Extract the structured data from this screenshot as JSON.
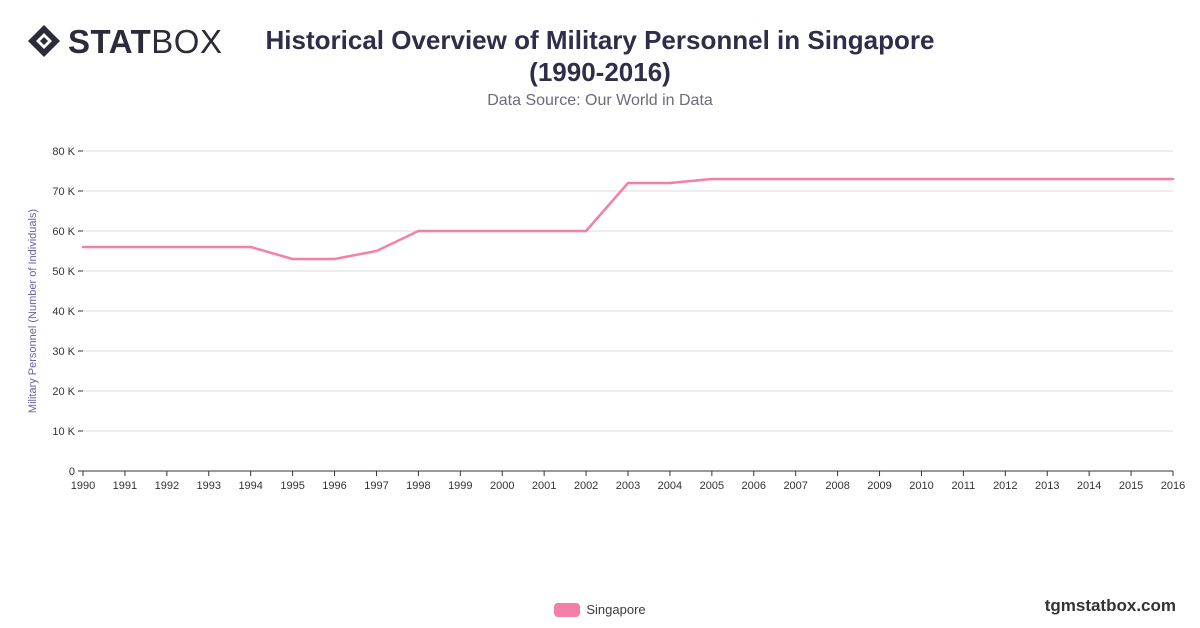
{
  "header": {
    "logo_bold": "STAT",
    "logo_light": "BOX",
    "title_line1": "Historical Overview of Military Personnel in Singapore",
    "title_line2": "(1990-2016)",
    "subtitle": "Data Source: Our World in Data"
  },
  "footer": {
    "brand_url": "tgmstatbox.com"
  },
  "colors": {
    "series": "#f47fa8",
    "grid": "#dcdcdc",
    "axis": "#333333",
    "tick_text": "#333333",
    "ylabel": "#6b5fa0"
  },
  "chart_data": {
    "type": "line",
    "title": "Historical Overview of Military Personnel in Singapore (1990-2016)",
    "subtitle": "Data Source: Our World in Data",
    "xlabel": "",
    "ylabel": "Military Personnel (Number of Individuals)",
    "ylim": [
      0,
      80000
    ],
    "y_ticks": [
      0,
      10000,
      20000,
      30000,
      40000,
      50000,
      60000,
      70000,
      80000
    ],
    "y_tick_labels": [
      "0",
      "10 K",
      "20 K",
      "30 K",
      "40 K",
      "50 K",
      "60 K",
      "70 K",
      "80 K"
    ],
    "grid": true,
    "legend_position": "bottom-center",
    "x": [
      "1990",
      "1991",
      "1992",
      "1993",
      "1994",
      "1995",
      "1996",
      "1997",
      "1998",
      "1999",
      "2000",
      "2001",
      "2002",
      "2003",
      "2004",
      "2005",
      "2006",
      "2007",
      "2008",
      "2009",
      "2010",
      "2011",
      "2012",
      "2013",
      "2014",
      "2015",
      "2016"
    ],
    "series": [
      {
        "name": "Singapore",
        "values": [
          56000,
          56000,
          56000,
          56000,
          56000,
          53000,
          53000,
          55000,
          60000,
          60000,
          60000,
          60000,
          60000,
          72000,
          72000,
          73000,
          73000,
          73000,
          73000,
          73000,
          73000,
          73000,
          73000,
          73000,
          73000,
          73000,
          73000
        ]
      }
    ]
  }
}
